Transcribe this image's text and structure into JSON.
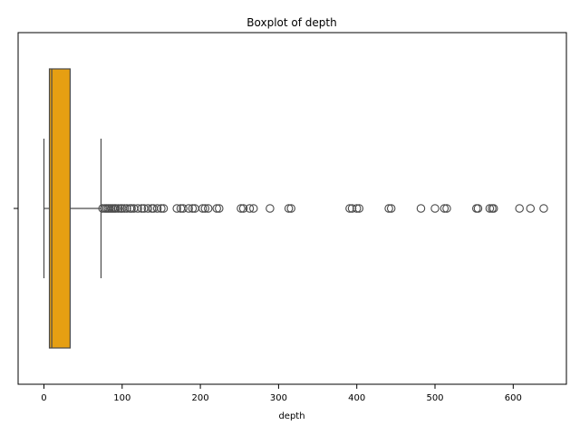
{
  "chart_data": {
    "type": "boxplot",
    "title": "Boxplot of depth",
    "xlabel": "depth",
    "ylabel": "",
    "orientation": "horizontal",
    "xlim": [
      -33,
      668
    ],
    "xticks": [
      0,
      100,
      200,
      300,
      400,
      500,
      600
    ],
    "grid": false,
    "legend": "none",
    "box_color": "#e69f12",
    "line_color": "#4a4a4a",
    "stats": {
      "whisker_low": 0,
      "q1": 7,
      "median": 10,
      "q3": 33.5,
      "whisker_high": 73
    },
    "outliers": [
      75,
      78,
      80,
      82,
      84,
      86,
      88,
      90,
      92,
      95,
      98,
      100,
      103,
      106,
      110,
      112,
      115,
      120,
      125,
      128,
      133,
      138,
      140,
      145,
      150,
      153,
      170,
      175,
      178,
      185,
      190,
      193,
      203,
      206,
      210,
      221,
      224,
      252,
      255,
      263,
      268,
      289,
      313,
      316,
      391,
      394,
      400,
      403,
      441,
      444,
      482,
      500,
      512,
      515,
      553,
      555,
      570,
      573,
      575,
      608,
      622,
      639
    ]
  }
}
